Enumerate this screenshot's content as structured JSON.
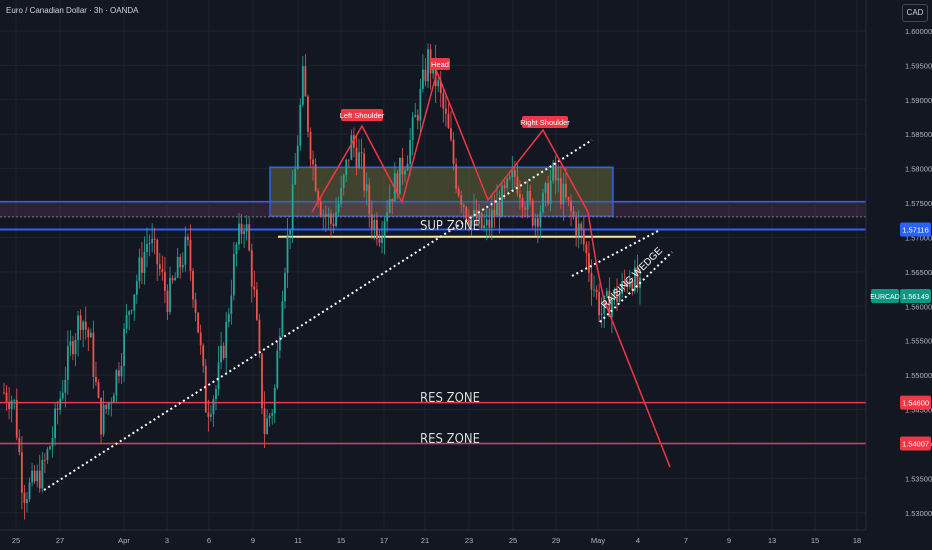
{
  "header": {
    "title": "Euro / Canadian Dollar · 3h · OANDA",
    "currency": "CAD"
  },
  "colors": {
    "background": "#131722",
    "up": "#26a69a",
    "down": "#ef5350",
    "red_line": "#f23645",
    "blue_line": "#2962ff",
    "yellow_line": "#f5e6a8",
    "label_bg": "#f23645"
  },
  "chart_data": {
    "type": "candlestick",
    "ylim": [
      1.5275,
      1.6045
    ],
    "y_ticks": [
      "1.60000",
      "1.59500",
      "1.59000",
      "1.58500",
      "1.58000",
      "1.57500",
      "1.57000",
      "1.56500",
      "1.56000",
      "1.55500",
      "1.55000",
      "1.54500",
      "1.54000",
      "1.53500",
      "1.53000"
    ],
    "y_tick_values": [
      1.6,
      1.595,
      1.59,
      1.585,
      1.58,
      1.575,
      1.57,
      1.565,
      1.56,
      1.555,
      1.55,
      1.545,
      1.54,
      1.535,
      1.53
    ],
    "x_ticks": [
      "25",
      "27",
      "Apr",
      "3",
      "6",
      "9",
      "11",
      "15",
      "17",
      "21",
      "23",
      "25",
      "29",
      "May",
      "4",
      "7",
      "9",
      "13",
      "15",
      "18"
    ],
    "price_tags": [
      {
        "label": "1.57116",
        "value": 1.57116,
        "color": "#2962ff"
      },
      {
        "label": "1.56149",
        "value": 1.56149,
        "color": "#089981",
        "symbol": "EURCAD"
      },
      {
        "label": "1.54600",
        "value": 1.546,
        "color": "#f23645"
      },
      {
        "label": "1.54007",
        "value": 1.54007,
        "color": "#f23645"
      }
    ],
    "annotations": {
      "left_shoulder": "Left Shoulder",
      "head": "Head",
      "right_shoulder": "Right Shoulder",
      "sup_zone": "SUP ZONE",
      "res_zone_1": "RES ZONE",
      "res_zone_2": "RES ZONE",
      "wedge": "RAISING WEDGE"
    },
    "levels": {
      "res1": 1.546,
      "res2": 1.54007,
      "sup": 1.5701,
      "blue_mid": 1.57116,
      "blue_upper": 1.5752,
      "box_top": 1.5802,
      "box_bottom": 1.5731
    },
    "key_prices": [
      [
        1.5475,
        1.5465,
        1.533,
        1.534,
        1.536,
        1.541,
        1.548,
        1.5545,
        1.559,
        1.5545,
        1.543,
        1.5465,
        1.552,
        1.56,
        1.565,
        1.57,
        1.566,
        1.561,
        1.565,
        1.569,
        1.559,
        1.545,
        1.548,
        1.556,
        1.568,
        1.573,
        1.561,
        1.542,
        1.546,
        1.565,
        1.576,
        1.593,
        1.581,
        1.574,
        1.572,
        1.576,
        1.584,
        1.581,
        1.573,
        1.571,
        1.576,
        1.579,
        1.583,
        1.589,
        1.596,
        1.592,
        1.586,
        1.578,
        1.574,
        1.572,
        1.571,
        1.574,
        1.576,
        1.579,
        1.576,
        1.573,
        1.575,
        1.579,
        1.576,
        1.573,
        1.57,
        1.564,
        1.559,
        1.561,
        1.562,
        1.565,
        1.562
      ]
    ]
  }
}
